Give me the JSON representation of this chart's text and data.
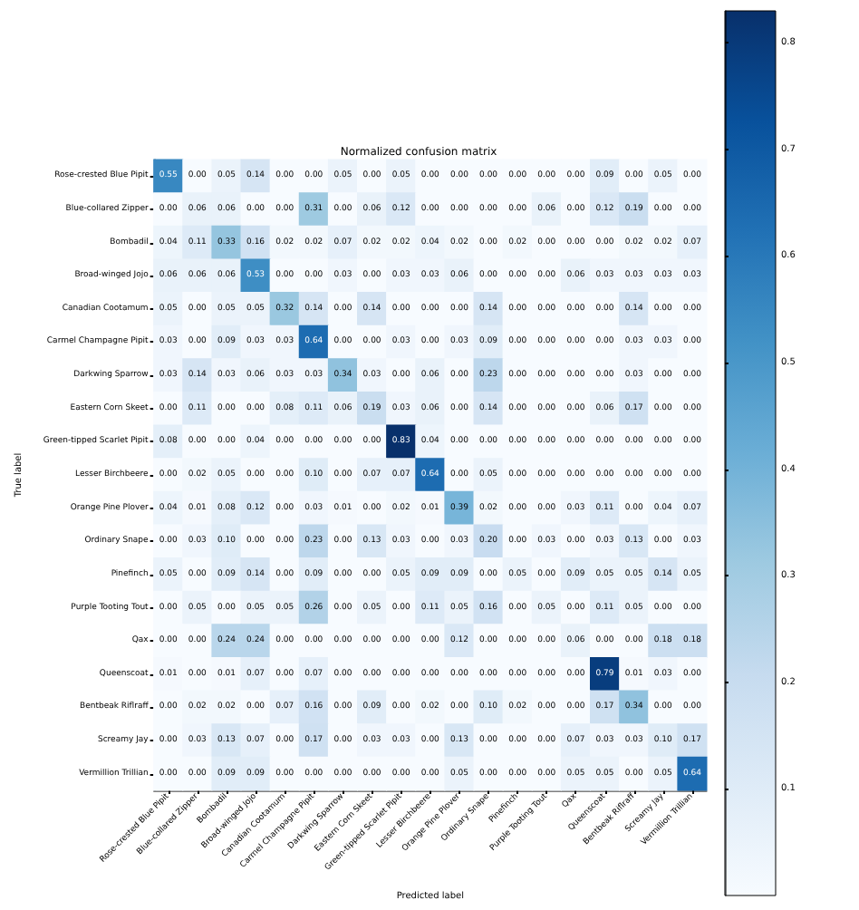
{
  "chart_data": {
    "type": "heatmap",
    "title": "Normalized confusion matrix",
    "xlabel": "Predicted label",
    "ylabel": "True label",
    "categories": [
      "Rose-crested Blue Pipit",
      "Blue-collared Zipper",
      "Bombadil",
      "Broad-winged Jojo",
      "Canadian Cootamum",
      "Carmel Champagne Pipit",
      "Darkwing Sparrow",
      "Eastern Corn Skeet",
      "Green-tipped Scarlet Pipit",
      "Lesser Birchbeere",
      "Orange Pine Plover",
      "Ordinary Snape",
      "Pinefinch",
      "Purple Tooting Tout",
      "Qax",
      "Queenscoat",
      "Bentbeak Riflraff",
      "Screamy Jay",
      "Vermillion Trillian"
    ],
    "y_categories": [
      "Rose-crested Blue Pipit",
      "Blue-collared Zipper",
      "Bombadil",
      "Broad-winged Jojo",
      "Canadian Cootamum",
      "Carmel Champagne Pipit",
      "Darkwing Sparrow",
      "Eastern Corn Skeet",
      "Green-tipped Scarlet Pipit",
      "Lesser Birchbeere",
      "Orange Pine Plover",
      "Ordinary Snape",
      "Pinefinch",
      "Purple Tooting Tout",
      "Qax",
      "Queenscoat",
      "Bentbeak Riflraff",
      "Screamy Jay",
      "Vermillion Trillian"
    ],
    "cells": [
      [
        0.55,
        0.0,
        0.05,
        0.14,
        0.0,
        0.0,
        0.05,
        0.0,
        0.05,
        0.0,
        0.0,
        0.0,
        0.0,
        0.0,
        0.0,
        0.09,
        0.0,
        0.05,
        0.0
      ],
      [
        0.0,
        0.06,
        0.06,
        0.0,
        0.0,
        0.31,
        0.0,
        0.06,
        0.12,
        0.0,
        0.0,
        0.0,
        0.0,
        0.06,
        0.0,
        0.12,
        0.19,
        0.0,
        0.0
      ],
      [
        0.04,
        0.11,
        0.33,
        0.16,
        0.02,
        0.02,
        0.07,
        0.02,
        0.02,
        0.04,
        0.02,
        0.0,
        0.02,
        0.0,
        0.0,
        0.0,
        0.02,
        0.02,
        0.07
      ],
      [
        0.06,
        0.06,
        0.06,
        0.53,
        0.0,
        0.0,
        0.03,
        0.0,
        0.03,
        0.03,
        0.06,
        0.0,
        0.0,
        0.0,
        0.06,
        0.03,
        0.03,
        0.03,
        0.03
      ],
      [
        0.05,
        0.0,
        0.05,
        0.05,
        0.32,
        0.14,
        0.0,
        0.14,
        0.0,
        0.0,
        0.0,
        0.14,
        0.0,
        0.0,
        0.0,
        0.0,
        0.14,
        0.0,
        0.0
      ],
      [
        0.03,
        0.0,
        0.09,
        0.03,
        0.03,
        0.64,
        0.0,
        0.0,
        0.03,
        0.0,
        0.03,
        0.09,
        0.0,
        0.0,
        0.0,
        0.0,
        0.03,
        0.03,
        0.0
      ],
      [
        0.03,
        0.14,
        0.03,
        0.06,
        0.03,
        0.03,
        0.34,
        0.03,
        0.0,
        0.06,
        0.0,
        0.23,
        0.0,
        0.0,
        0.0,
        0.0,
        0.03,
        0.0,
        0.0
      ],
      [
        0.0,
        0.11,
        0.0,
        0.0,
        0.08,
        0.11,
        0.06,
        0.19,
        0.03,
        0.06,
        0.0,
        0.14,
        0.0,
        0.0,
        0.0,
        0.06,
        0.17,
        0.0,
        0.0
      ],
      [
        0.08,
        0.0,
        0.0,
        0.04,
        0.0,
        0.0,
        0.0,
        0.0,
        0.83,
        0.04,
        0.0,
        0.0,
        0.0,
        0.0,
        0.0,
        0.0,
        0.0,
        0.0,
        0.0
      ],
      [
        0.0,
        0.02,
        0.05,
        0.0,
        0.0,
        0.1,
        0.0,
        0.07,
        0.07,
        0.64,
        0.0,
        0.05,
        0.0,
        0.0,
        0.0,
        0.0,
        0.0,
        0.0,
        0.0
      ],
      [
        0.04,
        0.01,
        0.08,
        0.12,
        0.0,
        0.03,
        0.01,
        0.0,
        0.02,
        0.01,
        0.39,
        0.02,
        0.0,
        0.0,
        0.03,
        0.11,
        0.0,
        0.04,
        0.07
      ],
      [
        0.0,
        0.03,
        0.1,
        0.0,
        0.0,
        0.23,
        0.0,
        0.13,
        0.03,
        0.0,
        0.03,
        0.2,
        0.0,
        0.03,
        0.0,
        0.03,
        0.13,
        0.0,
        0.03
      ],
      [
        0.05,
        0.0,
        0.09,
        0.14,
        0.0,
        0.09,
        0.0,
        0.0,
        0.05,
        0.09,
        0.09,
        0.0,
        0.05,
        0.0,
        0.09,
        0.05,
        0.05,
        0.14,
        0.05
      ],
      [
        0.0,
        0.05,
        0.0,
        0.05,
        0.05,
        0.26,
        0.0,
        0.05,
        0.0,
        0.11,
        0.05,
        0.16,
        0.0,
        0.05,
        0.0,
        0.11,
        0.05,
        0.0,
        0.0
      ],
      [
        0.0,
        0.0,
        0.24,
        0.24,
        0.0,
        0.0,
        0.0,
        0.0,
        0.0,
        0.0,
        0.12,
        0.0,
        0.0,
        0.0,
        0.06,
        0.0,
        0.0,
        0.18,
        0.18
      ],
      [
        0.01,
        0.0,
        0.01,
        0.07,
        0.0,
        0.07,
        0.0,
        0.0,
        0.0,
        0.0,
        0.0,
        0.0,
        0.0,
        0.0,
        0.0,
        0.79,
        0.01,
        0.03,
        0.0
      ],
      [
        0.0,
        0.02,
        0.02,
        0.0,
        0.07,
        0.16,
        0.0,
        0.09,
        0.0,
        0.02,
        0.0,
        0.1,
        0.02,
        0.0,
        0.0,
        0.17,
        0.34,
        0.0,
        0.0
      ],
      [
        0.0,
        0.03,
        0.13,
        0.07,
        0.0,
        0.17,
        0.0,
        0.03,
        0.03,
        0.0,
        0.13,
        0.0,
        0.0,
        0.0,
        0.07,
        0.03,
        0.03,
        0.1,
        0.17
      ],
      [
        0.0,
        0.0,
        0.09,
        0.09,
        0.0,
        0.0,
        0.0,
        0.0,
        0.0,
        0.0,
        0.05,
        0.0,
        0.0,
        0.0,
        0.05,
        0.05,
        0.0,
        0.05,
        0.64
      ]
    ],
    "cell_labels": [
      [
        "0.55",
        "0.00",
        "0.05",
        "0.14",
        "0.00",
        "0.00",
        "0.05",
        "0.00",
        "0.05",
        "0.00",
        "0.00",
        "0.00",
        "0.00",
        "0.00",
        "0.00",
        "0.09",
        "0.00",
        "0.05",
        "0.00"
      ],
      [
        "0.00",
        "0.06",
        "0.06",
        "0.00",
        "0.00",
        "0.31",
        "0.00",
        "0.06",
        "0.12",
        "0.00",
        "0.00",
        "0.00",
        "0.00",
        "0.06",
        "0.00",
        "0.12",
        "0.19",
        "0.00",
        "0.00"
      ],
      [
        "0.04",
        "0.11",
        "0.33",
        "0.16",
        "0.02",
        "0.02",
        "0.07",
        "0.02",
        "0.02",
        "0.04",
        "0.02",
        "0.00",
        "0.02",
        "0.00",
        "0.00",
        "0.00",
        "0.02",
        "0.02",
        "0.07"
      ],
      [
        "0.06",
        "0.06",
        "0.06",
        "0.53",
        "0.00",
        "0.00",
        "0.03",
        "0.00",
        "0.03",
        "0.03",
        "0.06",
        "0.00",
        "0.00",
        "0.00",
        "0.06",
        "0.03",
        "0.03",
        "0.03",
        "0.03"
      ],
      [
        "0.05",
        "0.00",
        "0.05",
        "0.05",
        "0.32",
        "0.14",
        "0.00",
        "0.14",
        "0.00",
        "0.00",
        "0.00",
        "0.14",
        "0.00",
        "0.00",
        "0.00",
        "0.00",
        "0.14",
        "0.00",
        "0.00"
      ],
      [
        "0.03",
        "0.00",
        "0.09",
        "0.03",
        "0.03",
        "0.64",
        "0.00",
        "0.00",
        "0.03",
        "0.00",
        "0.03",
        "0.09",
        "0.00",
        "0.00",
        "0.00",
        "0.00",
        "0.03",
        "0.03",
        "0.00"
      ],
      [
        "0.03",
        "0.14",
        "0.03",
        "0.06",
        "0.03",
        "0.03",
        "0.34",
        "0.03",
        "0.00",
        "0.06",
        "0.00",
        "0.23",
        "0.00",
        "0.00",
        "0.00",
        "0.00",
        "0.03",
        "0.00",
        "0.00"
      ],
      [
        "0.00",
        "0.11",
        "0.00",
        "0.00",
        "0.08",
        "0.11",
        "0.06",
        "0.19",
        "0.03",
        "0.06",
        "0.00",
        "0.14",
        "0.00",
        "0.00",
        "0.00",
        "0.06",
        "0.17",
        "0.00",
        "0.00"
      ],
      [
        "0.08",
        "0.00",
        "0.00",
        "0.04",
        "0.00",
        "0.00",
        "0.00",
        "0.00",
        "0.83",
        "0.04",
        "0.00",
        "0.00",
        "0.00",
        "0.00",
        "0.00",
        "0.00",
        "0.00",
        "0.00",
        "0.00"
      ],
      [
        "0.00",
        "0.02",
        "0.05",
        "0.00",
        "0.00",
        "0.10",
        "0.00",
        "0.07",
        "0.07",
        "0.64",
        "0.00",
        "0.05",
        "0.00",
        "0.00",
        "0.00",
        "0.00",
        "0.00",
        "0.00",
        "0.00"
      ],
      [
        "0.04",
        "0.01",
        "0.08",
        "0.12",
        "0.00",
        "0.03",
        "0.01",
        "0.00",
        "0.02",
        "0.01",
        "0.39",
        "0.02",
        "0.00",
        "0.00",
        "0.03",
        "0.11",
        "0.00",
        "0.04",
        "0.07"
      ],
      [
        "0.00",
        "0.03",
        "0.10",
        "0.00",
        "0.00",
        "0.23",
        "0.00",
        "0.13",
        "0.03",
        "0.00",
        "0.03",
        "0.20",
        "0.00",
        "0.03",
        "0.00",
        "0.03",
        "0.13",
        "0.00",
        "0.03"
      ],
      [
        "0.05",
        "0.00",
        "0.09",
        "0.14",
        "0.00",
        "0.09",
        "0.00",
        "0.00",
        "0.05",
        "0.09",
        "0.09",
        "0.00",
        "0.05",
        "0.00",
        "0.09",
        "0.05",
        "0.05",
        "0.14",
        "0.05"
      ],
      [
        "0.00",
        "0.05",
        "0.00",
        "0.05",
        "0.05",
        "0.26",
        "0.00",
        "0.05",
        "0.00",
        "0.11",
        "0.05",
        "0.16",
        "0.00",
        "0.05",
        "0.00",
        "0.11",
        "0.05",
        "0.00",
        "0.00"
      ],
      [
        "0.00",
        "0.00",
        "0.24",
        "0.24",
        "0.00",
        "0.00",
        "0.00",
        "0.00",
        "0.00",
        "0.00",
        "0.12",
        "0.00",
        "0.00",
        "0.00",
        "0.06",
        "0.00",
        "0.00",
        "0.18",
        "0.18"
      ],
      [
        "0.01",
        "0.00",
        "0.01",
        "0.07",
        "0.00",
        "0.07",
        "0.00",
        "0.00",
        "0.00",
        "0.00",
        "0.00",
        "0.00",
        "0.00",
        "0.00",
        "0.00",
        "0.79",
        "0.01",
        "0.03",
        "0.00"
      ],
      [
        "0.00",
        "0.02",
        "0.02",
        "0.00",
        "0.07",
        "0.16",
        "0.00",
        "0.09",
        "0.00",
        "0.02",
        "0.00",
        "0.10",
        "0.02",
        "0.00",
        "0.00",
        "0.17",
        "0.34",
        "0.00",
        "0.00"
      ],
      [
        "0.00",
        "0.03",
        "0.13",
        "0.07",
        "0.00",
        "0.17",
        "0.00",
        "0.03",
        "0.03",
        "0.00",
        "0.13",
        "0.00",
        "0.00",
        "0.00",
        "0.07",
        "0.03",
        "0.03",
        "0.10",
        "0.17"
      ],
      [
        "0.00",
        "0.00",
        "0.09",
        "0.09",
        "0.00",
        "0.00",
        "0.00",
        "0.00",
        "0.00",
        "0.00",
        "0.05",
        "0.00",
        "0.00",
        "0.00",
        "0.05",
        "0.05",
        "0.00",
        "0.05",
        "0.64"
      ]
    ],
    "clim": [
      0,
      0.83
    ],
    "cticks": [
      0.1,
      0.2,
      0.3,
      0.4,
      0.5,
      0.6,
      0.7,
      0.8
    ]
  }
}
